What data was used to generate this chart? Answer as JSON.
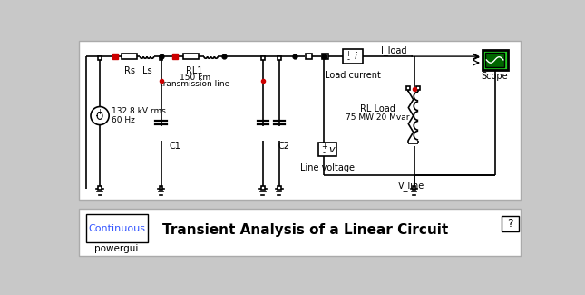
{
  "bg_color": "#c8c8c8",
  "circuit_bg": "#ffffff",
  "title": "Transient Analysis of a Linear Circuit",
  "title_fontsize": 11,
  "powergui_text": "Continuous",
  "powergui_label": "powergui",
  "source_text1": "132.8 kV rms",
  "source_text2": "60 Hz",
  "rl1_label": "RL1",
  "rl1_sub1": "150 km",
  "rl1_sub2": "transmission line",
  "rs_label": "Rs",
  "ls_label": "Ls",
  "c1_label": "C1",
  "c2_label": "C2",
  "load_current_label": "Load current",
  "rl_load_text1": "RL Load",
  "rl_load_text2": "75 MW 20 Mvar",
  "line_voltage_label": "Line voltage",
  "scope_label": "Scope",
  "iload_label": "I_load",
  "vline_label": "V_line",
  "scope_green": "#22cc22",
  "scope_inner": "#006600",
  "text_color": "#000000",
  "blue_text": "#3355ff",
  "red_dot": "#cc0000",
  "wire_lw": 1.2
}
